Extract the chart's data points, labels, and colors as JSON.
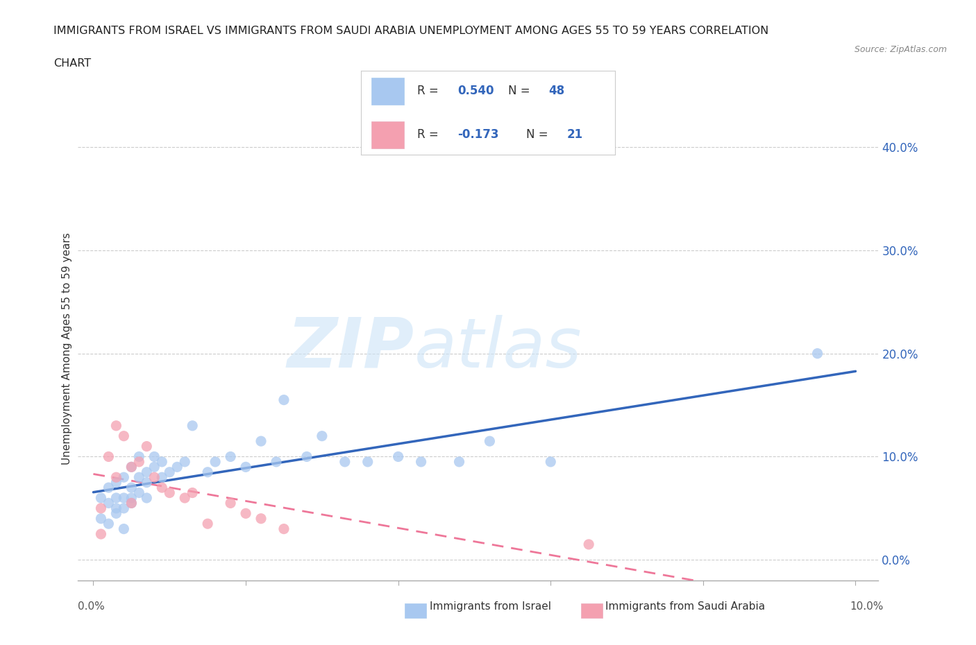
{
  "title_line1": "IMMIGRANTS FROM ISRAEL VS IMMIGRANTS FROM SAUDI ARABIA UNEMPLOYMENT AMONG AGES 55 TO 59 YEARS CORRELATION",
  "title_line2": "CHART",
  "source": "Source: ZipAtlas.com",
  "ylabel": "Unemployment Among Ages 55 to 59 years",
  "xlabel_israel": "Immigrants from Israel",
  "xlabel_saudi": "Immigrants from Saudi Arabia",
  "xlim": [
    -0.002,
    0.103
  ],
  "ylim": [
    -0.02,
    0.43
  ],
  "xticks": [
    0.0,
    0.02,
    0.04,
    0.06,
    0.08,
    0.1
  ],
  "yticks": [
    0.0,
    0.1,
    0.2,
    0.3,
    0.4
  ],
  "R_israel": 0.54,
  "N_israel": 48,
  "R_saudi": -0.173,
  "N_saudi": 21,
  "israel_color": "#a8c8f0",
  "saudi_color": "#f4a0b0",
  "israel_line_color": "#3366bb",
  "saudi_line_color": "#ee7799",
  "watermark_zip": "ZIP",
  "watermark_atlas": "atlas",
  "israel_scatter_x": [
    0.001,
    0.001,
    0.002,
    0.002,
    0.002,
    0.003,
    0.003,
    0.003,
    0.003,
    0.004,
    0.004,
    0.004,
    0.004,
    0.005,
    0.005,
    0.005,
    0.005,
    0.006,
    0.006,
    0.006,
    0.007,
    0.007,
    0.007,
    0.008,
    0.008,
    0.009,
    0.009,
    0.01,
    0.011,
    0.012,
    0.013,
    0.015,
    0.016,
    0.018,
    0.02,
    0.022,
    0.024,
    0.025,
    0.028,
    0.03,
    0.033,
    0.036,
    0.04,
    0.043,
    0.048,
    0.052,
    0.06,
    0.095
  ],
  "israel_scatter_y": [
    0.06,
    0.04,
    0.055,
    0.035,
    0.07,
    0.05,
    0.075,
    0.06,
    0.045,
    0.08,
    0.03,
    0.06,
    0.05,
    0.07,
    0.06,
    0.09,
    0.055,
    0.08,
    0.065,
    0.1,
    0.085,
    0.075,
    0.06,
    0.09,
    0.1,
    0.08,
    0.095,
    0.085,
    0.09,
    0.095,
    0.13,
    0.085,
    0.095,
    0.1,
    0.09,
    0.115,
    0.095,
    0.155,
    0.1,
    0.12,
    0.095,
    0.095,
    0.1,
    0.095,
    0.095,
    0.115,
    0.095,
    0.2
  ],
  "saudi_scatter_x": [
    0.001,
    0.001,
    0.002,
    0.003,
    0.003,
    0.004,
    0.005,
    0.005,
    0.006,
    0.007,
    0.008,
    0.009,
    0.01,
    0.012,
    0.013,
    0.015,
    0.018,
    0.02,
    0.022,
    0.025,
    0.065
  ],
  "saudi_scatter_y": [
    0.05,
    0.025,
    0.1,
    0.08,
    0.13,
    0.12,
    0.09,
    0.055,
    0.095,
    0.11,
    0.08,
    0.07,
    0.065,
    0.06,
    0.065,
    0.035,
    0.055,
    0.045,
    0.04,
    0.03,
    0.015
  ],
  "israel_line_x0": 0.0,
  "israel_line_x1": 0.1,
  "saudi_line_x0": 0.0,
  "saudi_line_x1": 0.1
}
